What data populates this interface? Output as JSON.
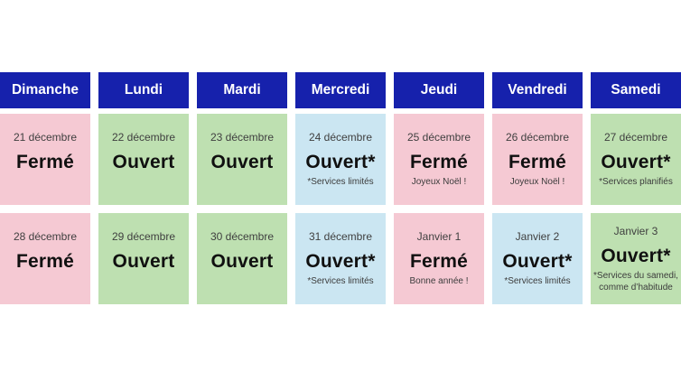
{
  "colors": {
    "header-bg": "#1621AC",
    "header-text": "#FFFFFF",
    "closed": "#F5C9D3",
    "open": "#BEE0B1",
    "limited": "#CBE6F2",
    "date-text": "#3F3F3F",
    "status-text": "#101010",
    "note-text": "#3C3C3C",
    "page-bg": "#FFFFFF"
  },
  "week": {
    "days": [
      {
        "name": "Dimanche",
        "row1": {
          "date": "21 décembre",
          "status": "Fermé",
          "note": "",
          "variant": "closed"
        },
        "row2": {
          "date": "28 décembre",
          "status": "Fermé",
          "note": "",
          "variant": "closed"
        }
      },
      {
        "name": "Lundi",
        "row1": {
          "date": "22 décembre",
          "status": "Ouvert",
          "note": "",
          "variant": "open"
        },
        "row2": {
          "date": "29 décembre",
          "status": "Ouvert",
          "note": "",
          "variant": "open"
        }
      },
      {
        "name": "Mardi",
        "row1": {
          "date": "23 décembre",
          "status": "Ouvert",
          "note": "",
          "variant": "open"
        },
        "row2": {
          "date": "30 décembre",
          "status": "Ouvert",
          "note": "",
          "variant": "open"
        }
      },
      {
        "name": "Mercredi",
        "row1": {
          "date": "24 décembre",
          "status": "Ouvert*",
          "note": "*Services limités",
          "variant": "limited"
        },
        "row2": {
          "date": "31 décembre",
          "status": "Ouvert*",
          "note": "*Services limités",
          "variant": "limited"
        }
      },
      {
        "name": "Jeudi",
        "row1": {
          "date": "25 décembre",
          "status": "Fermé",
          "note": "Joyeux Noël !",
          "variant": "closed"
        },
        "row2": {
          "date": "Janvier 1",
          "status": "Fermé",
          "note": "Bonne année !",
          "variant": "closed"
        }
      },
      {
        "name": "Vendredi",
        "row1": {
          "date": "26 décembre",
          "status": "Fermé",
          "note": "Joyeux Noël !",
          "variant": "closed"
        },
        "row2": {
          "date": "Janvier 2",
          "status": "Ouvert*",
          "note": "*Services limités",
          "variant": "limited"
        }
      },
      {
        "name": "Samedi",
        "row1": {
          "date": "27 décembre",
          "status": "Ouvert*",
          "note": "*Services planifiés",
          "variant": "open"
        },
        "row2": {
          "date": "Janvier 3",
          "status": "Ouvert*",
          "note": "*Services du samedi, comme d’habitude",
          "variant": "open"
        }
      }
    ]
  }
}
